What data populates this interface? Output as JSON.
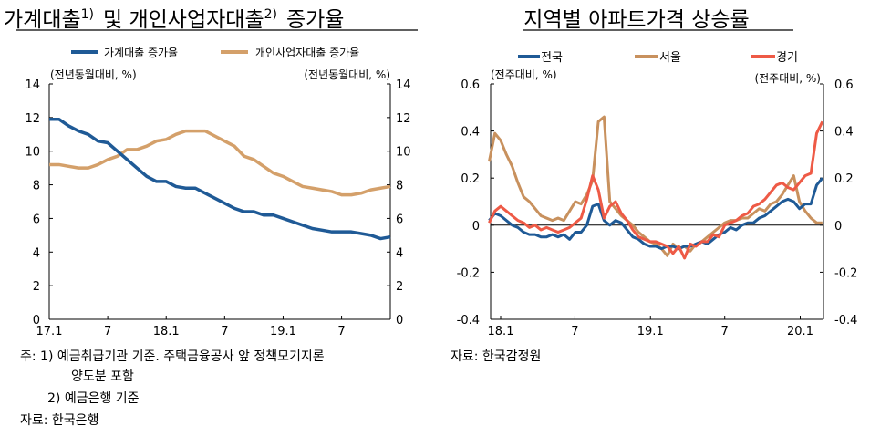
{
  "colors": {
    "household": "#1f5a96",
    "business": "#d4a06a",
    "national": "#1f5a96",
    "seoul": "#c8915e",
    "gyeonggi": "#ee5a46"
  },
  "chart_data": [
    {
      "type": "line",
      "title": "가계대출",
      "title_sup1": "1)",
      "title_mid": "및  개인사업자대출",
      "title_sup2": "2)",
      "title_end": "증가율",
      "ylabel_left": "(전년동월대비, %)",
      "ylabel_right": "(전년동월대비, %)",
      "ylim": [
        0,
        14
      ],
      "yticks": [
        0,
        2,
        4,
        6,
        8,
        10,
        12,
        14
      ],
      "xticks": [
        {
          "x": "2017-01",
          "label": "17.1"
        },
        {
          "x": "2017-07",
          "label": "7"
        },
        {
          "x": "2018-01",
          "label": "18.1"
        },
        {
          "x": "2018-07",
          "label": "7"
        },
        {
          "x": "2019-01",
          "label": "19.1"
        },
        {
          "x": "2019-07",
          "label": "7"
        }
      ],
      "x_start": "2017-01",
      "x_end": "2019-12",
      "legend_placement": "top",
      "grid": false,
      "series": [
        {
          "name": "가계대출 증가율",
          "color_key": "household",
          "values": [
            11.9,
            11.9,
            11.5,
            11.2,
            11.0,
            10.6,
            10.5,
            10.0,
            9.5,
            9.0,
            8.5,
            8.2,
            8.2,
            7.9,
            7.8,
            7.8,
            7.5,
            7.2,
            6.9,
            6.6,
            6.4,
            6.4,
            6.2,
            6.2,
            6.0,
            5.8,
            5.6,
            5.4,
            5.3,
            5.2,
            5.2,
            5.2,
            5.1,
            5.0,
            4.8,
            4.9
          ]
        },
        {
          "name": "개인사업자대출 증가율",
          "color_key": "business",
          "values": [
            9.2,
            9.2,
            9.1,
            9.0,
            9.0,
            9.2,
            9.5,
            9.7,
            10.1,
            10.1,
            10.3,
            10.6,
            10.7,
            11.0,
            11.2,
            11.2,
            11.2,
            10.9,
            10.6,
            10.3,
            9.7,
            9.5,
            9.1,
            8.7,
            8.5,
            8.2,
            7.9,
            7.8,
            7.7,
            7.6,
            7.4,
            7.4,
            7.5,
            7.7,
            7.8,
            7.9
          ]
        }
      ]
    },
    {
      "type": "line",
      "title": "지역별  아파트가격  상승률",
      "ylabel_left": "(전주대비, %)",
      "ylabel_right": "(전주대비, %)",
      "ylim": [
        -0.4,
        0.6
      ],
      "yticks": [
        -0.4,
        -0.2,
        0,
        0.2,
        0.4,
        0.6
      ],
      "ytick_labels": [
        "-0.4",
        "-0.2",
        "0",
        "0.2",
        "0.4",
        "0.6"
      ],
      "xticks": [
        {
          "x": "2018-01-01",
          "label": "18.1"
        },
        {
          "x": "2018-07-01",
          "label": "7"
        },
        {
          "x": "2019-01-01",
          "label": "19.1"
        },
        {
          "x": "2019-07-01",
          "label": "7"
        },
        {
          "x": "2020-01-01",
          "label": "20.1"
        }
      ],
      "legend_placement": "top",
      "grid": false,
      "x": [
        "2017-12-04",
        "2017-12-18",
        "2018-01-01",
        "2018-01-15",
        "2018-01-29",
        "2018-02-12",
        "2018-02-26",
        "2018-03-12",
        "2018-03-26",
        "2018-04-09",
        "2018-04-23",
        "2018-05-07",
        "2018-05-21",
        "2018-06-04",
        "2018-06-18",
        "2018-07-02",
        "2018-07-16",
        "2018-07-30",
        "2018-08-13",
        "2018-08-27",
        "2018-09-10",
        "2018-09-24",
        "2018-10-08",
        "2018-10-22",
        "2018-11-05",
        "2018-11-19",
        "2018-12-03",
        "2018-12-17",
        "2018-12-31",
        "2019-01-14",
        "2019-01-28",
        "2019-02-11",
        "2019-02-25",
        "2019-03-11",
        "2019-03-25",
        "2019-04-08",
        "2019-04-22",
        "2019-05-06",
        "2019-05-20",
        "2019-06-03",
        "2019-06-17",
        "2019-07-01",
        "2019-07-15",
        "2019-07-29",
        "2019-08-12",
        "2019-08-26",
        "2019-09-09",
        "2019-09-23",
        "2019-10-07",
        "2019-10-21",
        "2019-11-04",
        "2019-11-18",
        "2019-12-02",
        "2019-12-16",
        "2019-12-30",
        "2020-01-13",
        "2020-01-27",
        "2020-02-10",
        "2020-02-24"
      ],
      "series": [
        {
          "name": "서울",
          "color_key": "seoul",
          "values": [
            0.27,
            0.39,
            0.36,
            0.3,
            0.25,
            0.18,
            0.12,
            0.1,
            0.07,
            0.04,
            0.03,
            0.02,
            0.03,
            0.02,
            0.06,
            0.1,
            0.09,
            0.13,
            0.19,
            0.44,
            0.46,
            0.1,
            0.07,
            0.04,
            0.02,
            0.0,
            -0.03,
            -0.05,
            -0.07,
            -0.08,
            -0.1,
            -0.13,
            -0.08,
            -0.1,
            -0.09,
            -0.11,
            -0.08,
            -0.07,
            -0.05,
            -0.03,
            -0.01,
            0.01,
            0.02,
            0.02,
            0.03,
            0.03,
            0.05,
            0.07,
            0.06,
            0.09,
            0.1,
            0.13,
            0.17,
            0.21,
            0.1,
            0.06,
            0.03,
            0.01,
            0.01
          ]
        },
        {
          "name": "전국",
          "color_key": "national",
          "values": [
            0.02,
            0.05,
            0.04,
            0.02,
            0.0,
            -0.01,
            -0.03,
            -0.04,
            -0.04,
            -0.05,
            -0.05,
            -0.04,
            -0.05,
            -0.04,
            -0.06,
            -0.03,
            -0.03,
            0.0,
            0.08,
            0.09,
            0.02,
            0.0,
            0.02,
            0.01,
            -0.02,
            -0.05,
            -0.06,
            -0.08,
            -0.09,
            -0.09,
            -0.1,
            -0.09,
            -0.09,
            -0.1,
            -0.09,
            -0.09,
            -0.08,
            -0.07,
            -0.08,
            -0.06,
            -0.04,
            -0.03,
            -0.01,
            -0.02,
            0.0,
            0.01,
            0.01,
            0.03,
            0.04,
            0.06,
            0.08,
            0.1,
            0.11,
            0.1,
            0.07,
            0.09,
            0.09,
            0.17,
            0.2
          ]
        },
        {
          "name": "경기",
          "color_key": "gyeonggi",
          "values": [
            0.01,
            0.06,
            0.08,
            0.06,
            0.04,
            0.02,
            0.01,
            -0.01,
            0.0,
            -0.02,
            -0.01,
            -0.02,
            -0.03,
            -0.02,
            -0.01,
            0.01,
            0.03,
            0.11,
            0.21,
            0.15,
            0.03,
            0.08,
            0.1,
            0.05,
            0.02,
            -0.02,
            -0.05,
            -0.06,
            -0.07,
            -0.07,
            -0.08,
            -0.09,
            -0.12,
            -0.09,
            -0.14,
            -0.08,
            -0.09,
            -0.07,
            -0.07,
            -0.04,
            -0.05,
            0.0,
            0.01,
            0.02,
            0.04,
            0.05,
            0.08,
            0.09,
            0.11,
            0.14,
            0.17,
            0.18,
            0.16,
            0.15,
            0.18,
            0.21,
            0.22,
            0.39,
            0.44
          ]
        }
      ],
      "legend_order": [
        "전국",
        "서울",
        "경기"
      ]
    }
  ],
  "notes_left": [
    "주: 1) 예금취급기관 기준. 주택금융공사 앞 정책모기지론",
    "양도분 포함",
    "2) 예금은행 기준",
    "자료: 한국은행"
  ],
  "notes_right": [
    "자료: 한국감정원"
  ]
}
